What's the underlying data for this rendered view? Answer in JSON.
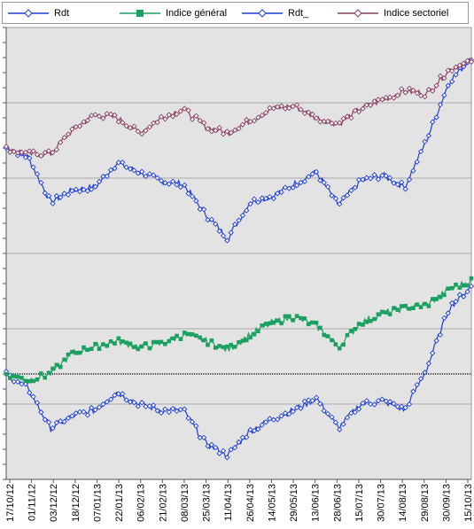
{
  "legend": {
    "items": [
      {
        "label": "Rdt",
        "color": "#1f3fd6",
        "marker": "diamond"
      },
      {
        "label": "Indice général",
        "color": "#1aa060",
        "marker": "square"
      },
      {
        "label": "Rdt_",
        "color": "#1f3fd6",
        "marker": "diamond"
      },
      {
        "label": "Indice sectoriel",
        "color": "#8a3f63",
        "marker": "diamond"
      }
    ]
  },
  "chart_data": [
    {
      "type": "line",
      "panel": "top",
      "x": [
        "17/10/12",
        "01/11/12",
        "03/12/12",
        "18/12/12",
        "07/01/13",
        "22/01/13",
        "06/02/13",
        "21/02/13",
        "08/03/13",
        "25/03/13",
        "11/04/13",
        "26/04/13",
        "14/05/13",
        "29/05/13",
        "13/06/13",
        "28/06/13",
        "15/07/13",
        "30/07/13",
        "14/08/13",
        "29/08/13",
        "30/09/13",
        "15/10/13"
      ],
      "series": [
        {
          "name": "Rdt_",
          "color": "#1f3fd6",
          "marker": "diamond",
          "values": [
            0.0,
            -0.03,
            -0.18,
            -0.14,
            -0.13,
            -0.05,
            -0.08,
            -0.11,
            -0.12,
            -0.22,
            -0.3,
            -0.18,
            -0.16,
            -0.12,
            -0.08,
            -0.19,
            -0.11,
            -0.09,
            -0.13,
            0.03,
            0.22,
            0.3
          ]
        },
        {
          "name": "Indice sectoriel",
          "color": "#8a3f63",
          "marker": "diamond",
          "values": [
            0.0,
            -0.02,
            -0.02,
            0.06,
            0.11,
            0.1,
            0.05,
            0.1,
            0.13,
            0.07,
            0.05,
            0.09,
            0.13,
            0.14,
            0.1,
            0.08,
            0.13,
            0.16,
            0.19,
            0.18,
            0.26,
            0.29
          ]
        }
      ],
      "ylim": [
        -0.35,
        0.4
      ],
      "grid": true
    },
    {
      "type": "line",
      "panel": "bottom",
      "x": [
        "17/10/12",
        "01/11/12",
        "03/12/12",
        "18/12/12",
        "07/01/13",
        "22/01/13",
        "06/02/13",
        "21/02/13",
        "08/03/13",
        "25/03/13",
        "11/04/13",
        "26/04/13",
        "14/05/13",
        "29/05/13",
        "13/06/13",
        "28/06/13",
        "15/07/13",
        "30/07/13",
        "14/08/13",
        "29/08/13",
        "30/09/13",
        "15/10/13"
      ],
      "series": [
        {
          "name": "Rdt",
          "color": "#1f3fd6",
          "marker": "diamond",
          "values": [
            0.0,
            -0.05,
            -0.18,
            -0.14,
            -0.12,
            -0.06,
            -0.1,
            -0.12,
            -0.12,
            -0.23,
            -0.27,
            -0.19,
            -0.15,
            -0.12,
            -0.08,
            -0.18,
            -0.1,
            -0.09,
            -0.12,
            0.02,
            0.22,
            0.29
          ]
        },
        {
          "name": "Indice général",
          "color": "#1aa060",
          "marker": "square",
          "values": [
            0.0,
            -0.02,
            0.0,
            0.07,
            0.09,
            0.11,
            0.09,
            0.1,
            0.13,
            0.11,
            0.08,
            0.13,
            0.17,
            0.19,
            0.16,
            0.09,
            0.17,
            0.2,
            0.22,
            0.23,
            0.28,
            0.31
          ]
        }
      ],
      "ylim": [
        -0.35,
        0.4
      ],
      "grid": true
    }
  ]
}
